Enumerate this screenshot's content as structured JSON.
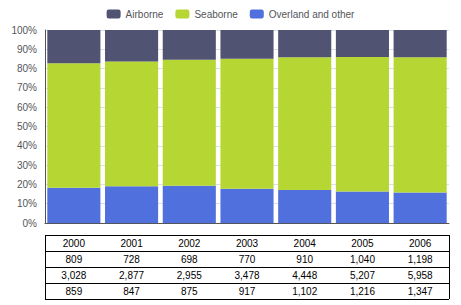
{
  "chart_data": {
    "type": "bar",
    "categories": [
      null,
      null,
      null,
      null,
      null,
      null,
      null
    ],
    "series": [
      {
        "name": "Overland and other",
        "values": [
          18.29,
          19.03,
          19.32,
          17.75,
          17.06,
          16.29,
          15.84
        ]
      },
      {
        "name": "Seaborne",
        "values": [
          64.48,
          64.62,
          65.26,
          67.34,
          68.85,
          69.77,
          70.07
        ]
      },
      {
        "name": "Airborne",
        "values": [
          17.23,
          16.35,
          15.42,
          14.91,
          14.09,
          13.94,
          14.09
        ]
      }
    ],
    "stacked": true,
    "ylim": [
      0,
      100
    ],
    "yticks": [
      {
        "value": 0,
        "label": "0%"
      },
      {
        "value": 10,
        "label": "10%"
      },
      {
        "value": 20,
        "label": "20%"
      },
      {
        "value": 30,
        "label": "30%"
      },
      {
        "value": 40,
        "label": "40%"
      },
      {
        "value": 50,
        "label": "50%"
      },
      {
        "value": 60,
        "label": "60%"
      },
      {
        "value": 70,
        "label": "70%"
      },
      {
        "value": 80,
        "label": "80%"
      },
      {
        "value": 90,
        "label": "90%"
      },
      {
        "value": 100,
        "label": "100%"
      }
    ],
    "grid": true,
    "legend": "top",
    "tick_labels": "y",
    "table": [
      [
        "2000",
        "2001",
        "2002",
        "2003",
        "2004",
        "2005",
        "2006"
      ],
      [
        "809",
        "728",
        "698",
        "770",
        "910",
        "1,040",
        "1,198"
      ],
      [
        "3,028",
        "2,877",
        "2,955",
        "3,478",
        "4,448",
        "5,207",
        "5,958"
      ],
      [
        "859",
        "847",
        "875",
        "917",
        "1,102",
        "1,216",
        "1,347"
      ]
    ]
  }
}
